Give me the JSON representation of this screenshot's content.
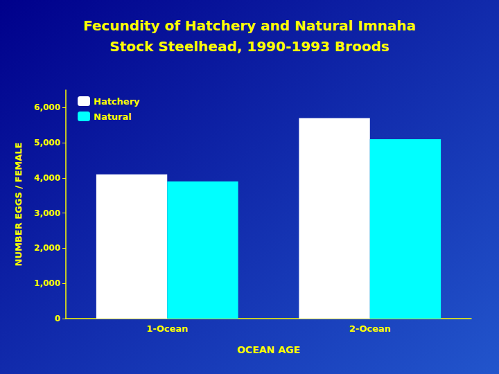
{
  "chart_data": {
    "type": "bar",
    "title": "Fecundity of Hatchery and Natural Imnaha",
    "subtitle": "Stock Steelhead, 1990-1993 Broods",
    "xlabel": "OCEAN AGE",
    "ylabel": "NUMBER EGGS / FEMALE",
    "categories": [
      "1-Ocean",
      "2-Ocean"
    ],
    "series": [
      {
        "name": "Hatchery",
        "color": "#FFFFFF",
        "values": [
          4100,
          5700
        ]
      },
      {
        "name": "Natural",
        "color": "#00FFFF",
        "values": [
          3900,
          5100
        ]
      }
    ],
    "ylim": [
      0,
      6500
    ],
    "yticks": [
      0,
      {
        "value": 1000,
        "label": "1,000"
      },
      {
        "value": 2000,
        "label": "2,000"
      },
      {
        "value": 3000,
        "label": "3,000"
      },
      {
        "value": 4000,
        "label": "4,000"
      },
      {
        "value": 5000,
        "label": "5,000"
      },
      {
        "value": 6000,
        "label": "6,000"
      }
    ],
    "grid": false,
    "legend": "upper left"
  }
}
